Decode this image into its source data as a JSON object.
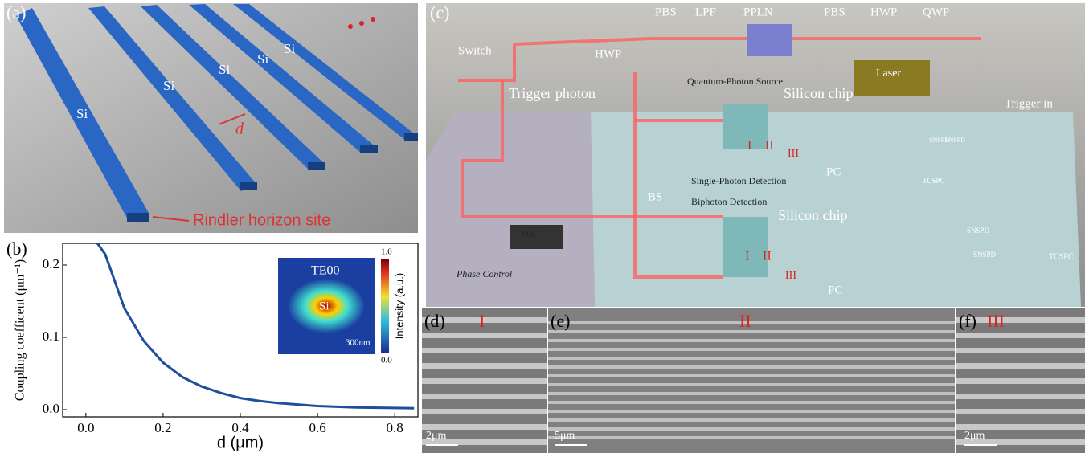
{
  "panels": {
    "a": {
      "label": "(a)",
      "si_labels": [
        "Si",
        "Si",
        "Si",
        "Si",
        "Si"
      ],
      "gap_label": "d",
      "annotation": "Rindler horizon site"
    },
    "c": {
      "label": "(c)",
      "labels": [
        "PBS",
        "LPF",
        "PPLN",
        "PBS",
        "HWP",
        "QWP",
        "Switch",
        "HWP",
        "Trigger photon",
        "Quantum-Photon Source",
        "Laser",
        "Silicon chip",
        "Trigger in",
        "I",
        "II",
        "III",
        "PC",
        "TCSPC",
        "SNSPD",
        "SNSPD",
        "TEC",
        "BS",
        "Single-Photon Detection",
        "Biphoton Detection",
        "Silicon chip",
        "I",
        "II",
        "III",
        "SNSPD",
        "SNSPD",
        "TCSPC",
        "PC",
        "Phase Control"
      ]
    },
    "d": {
      "label": "(d)",
      "section": "I",
      "scale": "2μm"
    },
    "e": {
      "label": "(e)",
      "section": "II",
      "scale": "5μm"
    },
    "f": {
      "label": "(f)",
      "section": "III",
      "scale": "2μm"
    }
  },
  "chart_data": {
    "type": "line",
    "panel_label": "(b)",
    "x_label": "d (μm)",
    "y_label": "Coupling coefficent (μm⁻¹)",
    "x": [
      0.03,
      0.05,
      0.1,
      0.15,
      0.2,
      0.25,
      0.3,
      0.35,
      0.4,
      0.45,
      0.5,
      0.6,
      0.7,
      0.85
    ],
    "series": [
      {
        "color": "#1f4e9c",
        "values": [
          0.23,
          0.215,
          0.14,
          0.095,
          0.065,
          0.045,
          0.032,
          0.023,
          0.016,
          0.012,
          0.009,
          0.005,
          0.003,
          0.002
        ]
      }
    ],
    "xlim": [
      -0.06,
      0.86
    ],
    "ylim": [
      -0.01,
      0.23
    ],
    "xticks": [
      {
        "value": 0,
        "label": "0.0"
      },
      0.2,
      0.4,
      0.6,
      0.8
    ],
    "yticks": [
      {
        "value": 0,
        "label": "0.0"
      },
      0.1,
      0.2
    ],
    "inset": {
      "mode": "TE00",
      "core": "Si",
      "scale": "300nm",
      "bar_label": "Intensity (a.u.)",
      "bar_max": "1.0",
      "bar_min": "0.0"
    }
  }
}
